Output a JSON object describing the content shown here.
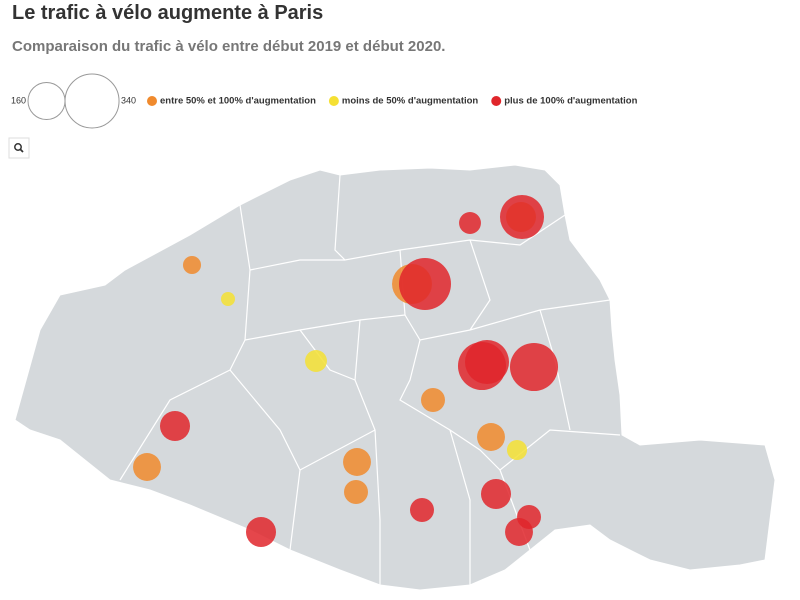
{
  "title": "Le trafic à vélo augmente à Paris",
  "subtitle": "Comparaison du trafic à vélo entre début 2019 et début 2020.",
  "size_legend": [
    160,
    340
  ],
  "groups": [
    {
      "name": "entre 50% et 100% d'augmentation",
      "color": "#f08a2d",
      "values": [
        38,
        105,
        186,
        67,
        91,
        91,
        91,
        67
      ]
    },
    {
      "name": "moins de 50% d'augmentation",
      "color": "#f5e033",
      "values": [
        23,
        56,
        47
      ]
    },
    {
      "name": "plus de 100% d'augmentation",
      "color": "#e0262b",
      "values": [
        56,
        226,
        315,
        226,
        269,
        269,
        105,
        105,
        67,
        67,
        91,
        105
      ]
    }
  ]
}
